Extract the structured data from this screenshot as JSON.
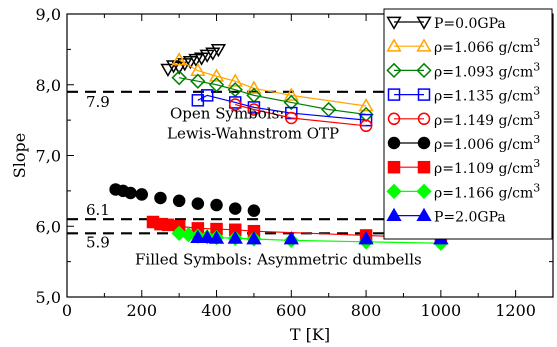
{
  "chart_data": {
    "type": "scatter",
    "xlabel": "T [K]",
    "ylabel": "Slope",
    "xlim": [
      0,
      1300
    ],
    "ylim": [
      5.0,
      9.0
    ],
    "xticks": [
      "0",
      "200",
      "400",
      "600",
      "800",
      "1000",
      "1200"
    ],
    "yticks": [
      "5,0",
      "6,0",
      "7,0",
      "8,0",
      "9,0"
    ],
    "grid": false,
    "legend_position": "top-right",
    "reference_lines": [
      {
        "y": 7.9,
        "label": "7.9"
      },
      {
        "y": 6.1,
        "label": "6.1"
      },
      {
        "y": 5.9,
        "label": "5.9"
      }
    ],
    "annotations": [
      {
        "lines": [
          "Open Symbols:",
          "Lewis-Wahnstrom OTP"
        ],
        "x": 360,
        "y": 7.52
      },
      {
        "lines": [
          "Filled Symbols: Asymmetric dumbells"
        ],
        "x": 240,
        "y": 5.46
      }
    ],
    "series": [
      {
        "name": "P=0.0GPa",
        "color": "#000000",
        "marker": "triangle-down",
        "filled": false,
        "connect": false,
        "x": [
          270,
          285,
          300,
          315,
          330,
          345,
          360,
          375,
          390,
          405
        ],
        "y": [
          8.22,
          8.27,
          8.25,
          8.3,
          8.33,
          8.36,
          8.38,
          8.42,
          8.45,
          8.5
        ]
      },
      {
        "name": "ρ=1.066 g/cm³",
        "label": "ρ=1.066 g/cm",
        "sup": "3",
        "color": "#ffa500",
        "marker": "triangle-up",
        "filled": false,
        "connect": true,
        "x": [
          300,
          350,
          400,
          450,
          500,
          600,
          800
        ],
        "y": [
          8.35,
          8.2,
          8.12,
          8.05,
          7.95,
          7.85,
          7.7
        ]
      },
      {
        "name": "ρ=1.093 g/cm³",
        "label": "ρ=1.093 g/cm",
        "sup": "3",
        "color": "#008000",
        "marker": "diamond",
        "filled": false,
        "connect": true,
        "x": [
          300,
          350,
          400,
          450,
          500,
          600,
          700,
          800
        ],
        "y": [
          8.1,
          8.05,
          8.0,
          7.93,
          7.85,
          7.75,
          7.65,
          7.58
        ]
      },
      {
        "name": "ρ=1.135 g/cm³",
        "label": "ρ=1.135 g/cm",
        "sup": "3",
        "color": "#0000ff",
        "marker": "square",
        "filled": false,
        "connect": true,
        "x": [
          350,
          375,
          450,
          500,
          600,
          800
        ],
        "y": [
          7.78,
          7.85,
          7.75,
          7.68,
          7.6,
          7.5
        ]
      },
      {
        "name": "ρ=1.149 g/cm³",
        "label": "ρ=1.149 g/cm",
        "sup": "3",
        "color": "#ff0000",
        "marker": "circle",
        "filled": false,
        "connect": true,
        "x": [
          450,
          500,
          600,
          800
        ],
        "y": [
          7.72,
          7.65,
          7.53,
          7.42
        ]
      },
      {
        "name": "ρ=1.006 g/cm³",
        "label": "ρ=1.006 g/cm",
        "sup": "3",
        "color": "#000000",
        "marker": "circle",
        "filled": true,
        "connect": false,
        "x": [
          130,
          150,
          170,
          200,
          250,
          300,
          350,
          400,
          450,
          500
        ],
        "y": [
          6.52,
          6.5,
          6.47,
          6.45,
          6.4,
          6.36,
          6.32,
          6.3,
          6.25,
          6.22
        ]
      },
      {
        "name": "ρ=1.109 g/cm³",
        "label": "ρ=1.109 g/cm",
        "sup": "3",
        "color": "#ff0000",
        "marker": "square",
        "filled": true,
        "connect": true,
        "x": [
          230,
          250,
          270,
          300,
          350,
          400,
          450,
          500,
          800,
          1000
        ],
        "y": [
          6.06,
          6.03,
          6.02,
          6.0,
          5.97,
          5.96,
          5.95,
          5.93,
          5.87,
          5.83
        ]
      },
      {
        "name": "ρ=1.166 g/cm³",
        "label": "ρ=1.166 g/cm",
        "sup": "3",
        "color": "#00ff00",
        "marker": "diamond",
        "filled": true,
        "connect": true,
        "x": [
          300,
          325,
          350,
          375,
          400,
          450,
          500,
          600,
          800,
          1000
        ],
        "y": [
          5.9,
          5.88,
          5.86,
          5.85,
          5.84,
          5.83,
          5.82,
          5.8,
          5.78,
          5.76
        ]
      },
      {
        "name": "P=2.0GPa",
        "color": "#0000ff",
        "marker": "triangle-up",
        "filled": true,
        "connect": false,
        "x": [
          350,
          375,
          400,
          450,
          500,
          600,
          800,
          1000
        ],
        "y": [
          5.84,
          5.84,
          5.83,
          5.83,
          5.82,
          5.82,
          5.82,
          5.82
        ]
      }
    ]
  }
}
